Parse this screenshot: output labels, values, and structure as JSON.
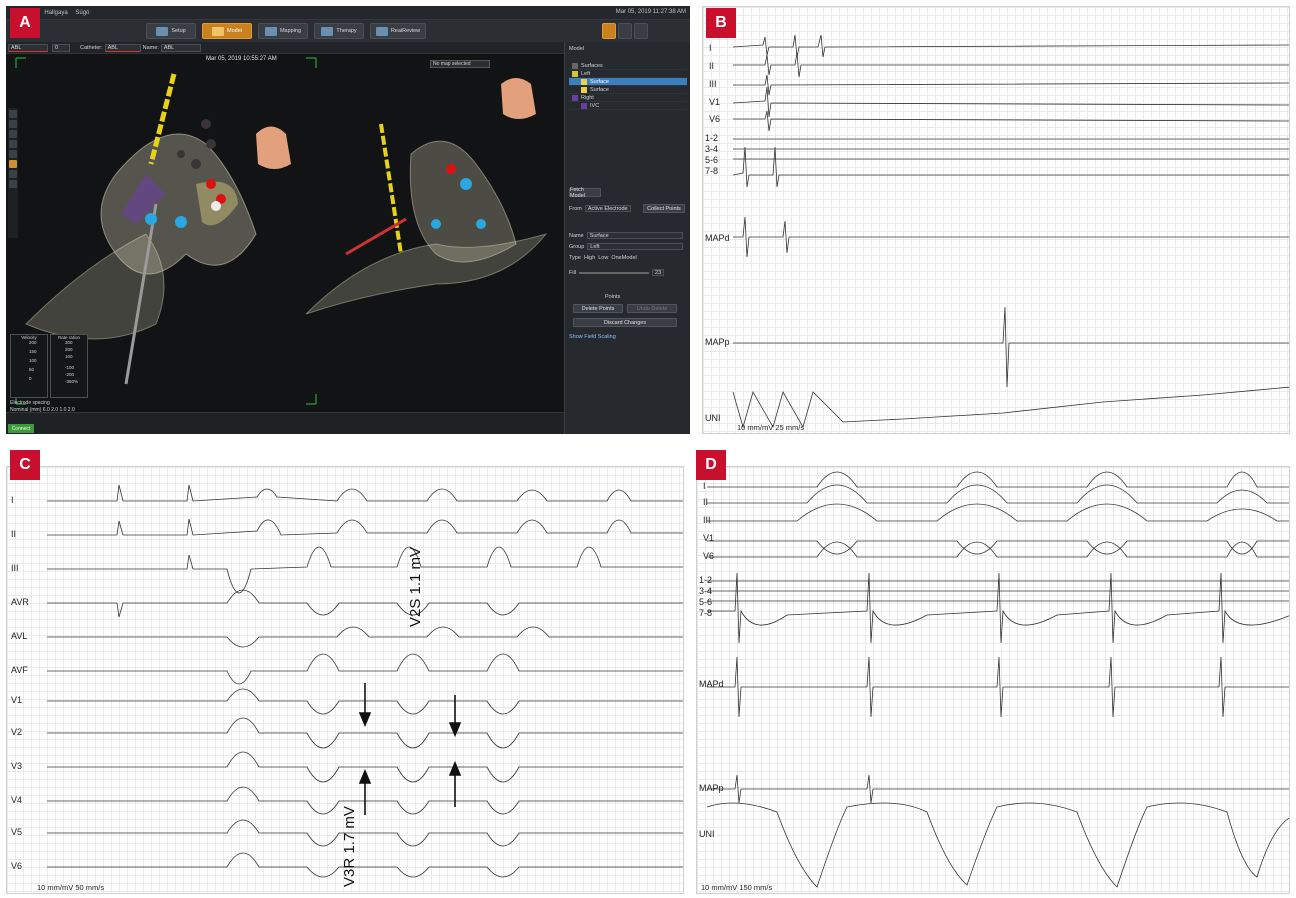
{
  "panels": {
    "A": {
      "letter": "A",
      "menu": [
        "al",
        "Hallgaya",
        "Súgó"
      ],
      "datetime_top": "Mar 05, 2019 11:27:38 AM",
      "nav_buttons": [
        "Setup",
        "Model",
        "Mapping",
        "Therapy",
        "ReaiReview"
      ],
      "toolbar": {
        "abl": "ABL",
        "catheter_label": "Catheter:",
        "catheter_value": "ABL",
        "name_label": "Name:",
        "name_value": "ABL"
      },
      "view_datetime": "Mar 05, 2019 10:55:27 AM",
      "map_select": "No map selected",
      "right_panel": {
        "title": "Model",
        "tree": [
          "Surfaces",
          "Left",
          "Surface",
          "Surface",
          "Right",
          "IVC"
        ],
        "fetch_model": "Fetch Model",
        "from_label": "From",
        "from_value": "Active Electrode",
        "collect_points": "Collect Points",
        "name_label": "Name",
        "name_value": "Surface",
        "group_label": "Group",
        "group_value": "Left",
        "type_label": "Type",
        "type_options": [
          "High",
          "Low",
          "OneModel"
        ],
        "fill_label": "Fill",
        "fill_value": "23",
        "points_label": "Points",
        "delete_points": "Delete Points",
        "undo_delete": "Undo Delete",
        "discard_changes": "Discard Changes",
        "show_field_scaling": "Show Field Scaling"
      },
      "gauges": {
        "velocity_title": "Velocity",
        "velocity_ticks": [
          "200",
          "150",
          "100",
          "50",
          "0"
        ],
        "rate_title": "Rate ration",
        "rate_ticks": [
          "300",
          "200",
          "100",
          "-100",
          "-200",
          "-360%"
        ]
      },
      "electrode": {
        "line1": "Electrode spacing",
        "line2": "Nominal (mm)",
        "values": "6.0   2.0   1.0   2.0"
      },
      "status_button": "Connect"
    },
    "B": {
      "letter": "B",
      "labels": [
        "I",
        "II",
        "III",
        "V1",
        "V6",
        "1-2",
        "3-4",
        "5-6",
        "7-8",
        "MAPd",
        "MAPp",
        "UNI"
      ],
      "scale": "10 mm/mV   25 mm/s"
    },
    "C": {
      "letter": "C",
      "labels": [
        "I",
        "II",
        "III",
        "AVR",
        "AVL",
        "AVF",
        "V1",
        "V2",
        "V3",
        "V4",
        "V5",
        "V6"
      ],
      "scale": "10 mm/mV   50 mm/s",
      "annot_v2s": "V2S 1.1 mV",
      "annot_v3r": "V3R 1.7 mV"
    },
    "D": {
      "letter": "D",
      "labels": [
        "I",
        "II",
        "III",
        "V1",
        "V6",
        "1-2",
        "3-4",
        "5-6",
        "7-8",
        "MAPd",
        "MAPp",
        "UNI"
      ],
      "scale": "10 mm/mV   150 mm/s"
    }
  }
}
